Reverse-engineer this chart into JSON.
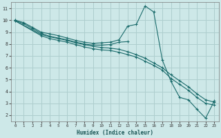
{
  "xlabel": "Humidex (Indice chaleur)",
  "ylabel": "",
  "bg_color": "#cde8e8",
  "grid_color": "#aecece",
  "line_color": "#1a6b6b",
  "xlim": [
    -0.5,
    23.5
  ],
  "ylim": [
    1.5,
    11.5
  ],
  "xticks": [
    0,
    1,
    2,
    3,
    4,
    5,
    6,
    7,
    8,
    9,
    10,
    11,
    12,
    13,
    14,
    15,
    16,
    17,
    18,
    19,
    20,
    21,
    22,
    23
  ],
  "yticks": [
    2,
    3,
    4,
    5,
    6,
    7,
    8,
    9,
    10,
    11
  ],
  "series": [
    {
      "x": [
        0,
        1,
        2,
        3,
        4,
        5,
        6,
        7,
        8,
        9,
        10,
        11,
        12,
        13,
        14,
        15,
        16,
        17,
        18,
        19,
        20,
        21,
        22,
        23
      ],
      "y": [
        10.0,
        9.8,
        9.4,
        9.0,
        8.85,
        8.7,
        8.5,
        8.3,
        8.15,
        8.05,
        8.1,
        8.15,
        8.35,
        9.5,
        9.65,
        11.2,
        10.7,
        6.65,
        4.85,
        3.5,
        3.3,
        2.5,
        1.75,
        3.2
      ]
    },
    {
      "x": [
        0,
        1,
        2,
        3,
        4,
        5,
        6,
        7,
        8,
        9,
        10,
        11,
        12,
        13
      ],
      "y": [
        10.0,
        9.7,
        9.3,
        8.9,
        8.65,
        8.5,
        8.35,
        8.15,
        8.0,
        7.9,
        7.9,
        7.95,
        8.15,
        8.2
      ]
    },
    {
      "x": [
        0,
        3,
        4,
        5,
        6,
        7,
        8,
        9,
        10,
        11,
        12,
        13,
        14,
        15,
        16,
        17,
        18,
        19,
        20,
        21,
        22,
        23
      ],
      "y": [
        9.95,
        8.8,
        8.6,
        8.45,
        8.3,
        8.1,
        7.95,
        7.8,
        7.7,
        7.65,
        7.55,
        7.35,
        7.1,
        6.8,
        6.4,
        6.0,
        5.4,
        4.9,
        4.4,
        3.8,
        3.3,
        3.1
      ]
    },
    {
      "x": [
        0,
        3,
        4,
        5,
        6,
        7,
        8,
        9,
        10,
        11,
        12,
        13,
        14,
        15,
        16,
        17,
        18,
        19,
        20,
        21,
        22,
        23
      ],
      "y": [
        9.95,
        8.7,
        8.45,
        8.3,
        8.15,
        7.95,
        7.75,
        7.6,
        7.5,
        7.45,
        7.3,
        7.1,
        6.9,
        6.55,
        6.2,
        5.8,
        5.1,
        4.6,
        4.1,
        3.5,
        3.0,
        2.85
      ]
    }
  ]
}
